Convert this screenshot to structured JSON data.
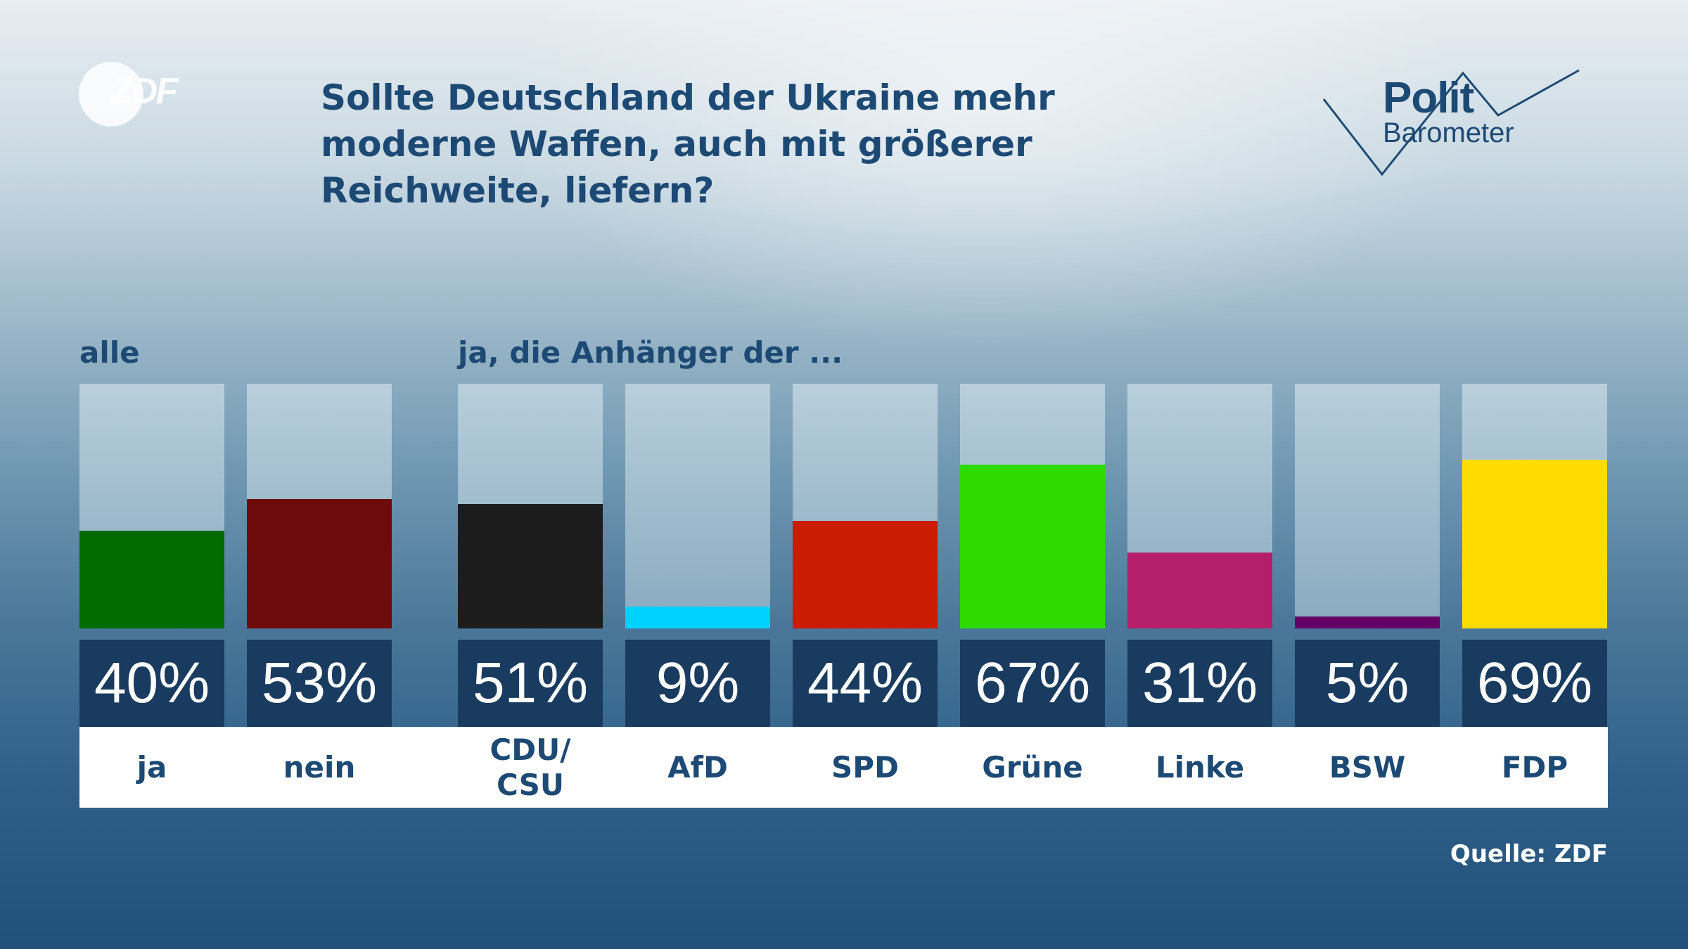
{
  "header": {
    "title": "Sollte Deutschland der Ukraine mehr moderne Waffen, auch mit größerer Reichweite, liefern?"
  },
  "logos": {
    "zdf_logo_text": "ZDF",
    "polit_word": "Polit",
    "barometer_word": "Barometer"
  },
  "sections": {
    "all_label": "alle",
    "supporters_label": "ja, die Anhänger der ..."
  },
  "source": "Quelle: ZDF",
  "chart_data": {
    "type": "bar",
    "title": "Sollte Deutschland der Ukraine mehr moderne Waffen, auch mit größerer Reichweite, liefern?",
    "ylim": [
      0,
      100
    ],
    "unit": "%",
    "grid": false,
    "groups": [
      {
        "label": "alle",
        "categories": [
          "ja",
          "nein"
        ]
      },
      {
        "label": "ja, die Anhänger der ...",
        "categories": [
          "CDU/\nCSU",
          "AfD",
          "SPD",
          "Grüne",
          "Linke",
          "BSW",
          "FDP"
        ]
      }
    ],
    "categories": [
      "ja",
      "nein",
      "CDU/\nCSU",
      "AfD",
      "SPD",
      "Grüne",
      "Linke",
      "BSW",
      "FDP"
    ],
    "values": [
      40,
      53,
      51,
      9,
      44,
      67,
      31,
      5,
      69
    ],
    "value_labels": [
      "40%",
      "53%",
      "51%",
      "9%",
      "44%",
      "67%",
      "31%",
      "5%",
      "69%"
    ],
    "colors": [
      "#026b00",
      "#6e0b0b",
      "#1c1c1c",
      "#00d2ff",
      "#cb1b00",
      "#2ddb00",
      "#b41e6a",
      "#650067",
      "#ffdc00"
    ]
  }
}
